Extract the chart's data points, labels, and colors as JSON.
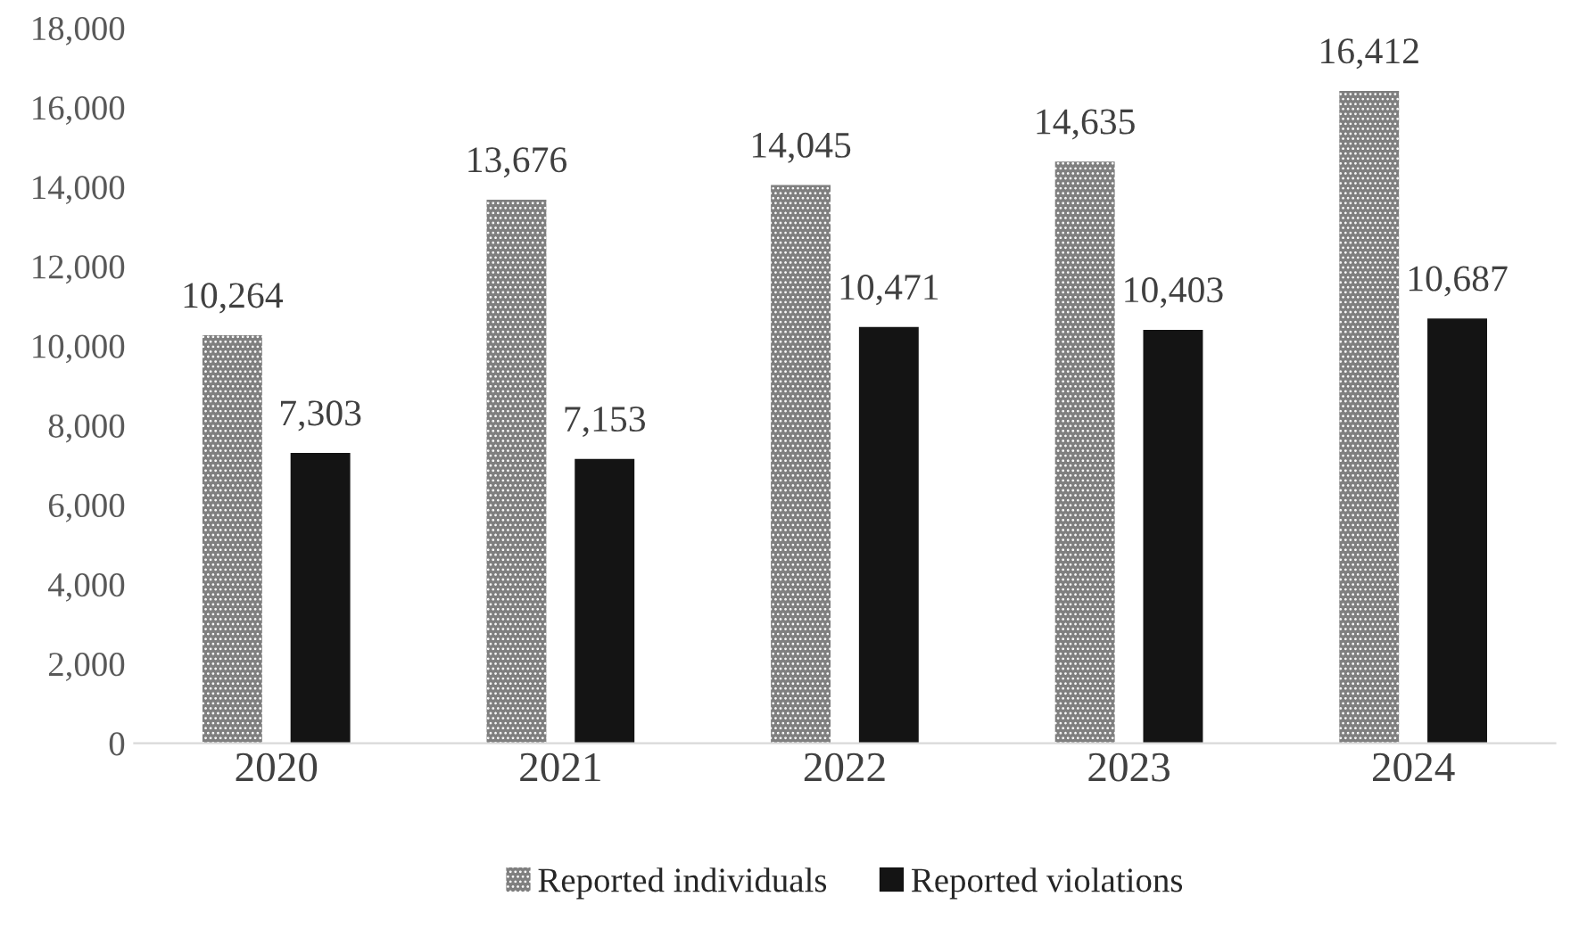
{
  "chart_data": {
    "type": "bar",
    "categories": [
      "2020",
      "2021",
      "2022",
      "2023",
      "2024"
    ],
    "series": [
      {
        "name": "Reported individuals",
        "color": "#7f7f7f",
        "values": [
          10264,
          13676,
          14045,
          14635,
          16412
        ]
      },
      {
        "name": "Reported violations",
        "color": "#141414",
        "values": [
          7303,
          7153,
          10471,
          10403,
          10687
        ]
      }
    ],
    "ylim": [
      0,
      18000
    ],
    "yticks": [
      {
        "value": 0,
        "label": "0"
      },
      {
        "value": 2000,
        "label": "2,000"
      },
      {
        "value": 4000,
        "label": "4,000"
      },
      {
        "value": 6000,
        "label": "6,000"
      },
      {
        "value": 8000,
        "label": "8,000"
      },
      {
        "value": 10000,
        "label": "10,000"
      },
      {
        "value": 12000,
        "label": "12,000"
      },
      {
        "value": 14000,
        "label": "14,000"
      },
      {
        "value": 16000,
        "label": "16,000"
      },
      {
        "value": 18000,
        "label": "18,000"
      }
    ],
    "value_labels": [
      [
        "10,264",
        "13,676",
        "14,045",
        "14,635",
        "16,412"
      ],
      [
        "7,303",
        "7,153",
        "10,471",
        "10,403",
        "10,687"
      ]
    ],
    "grid": false,
    "legend": "bottom"
  }
}
